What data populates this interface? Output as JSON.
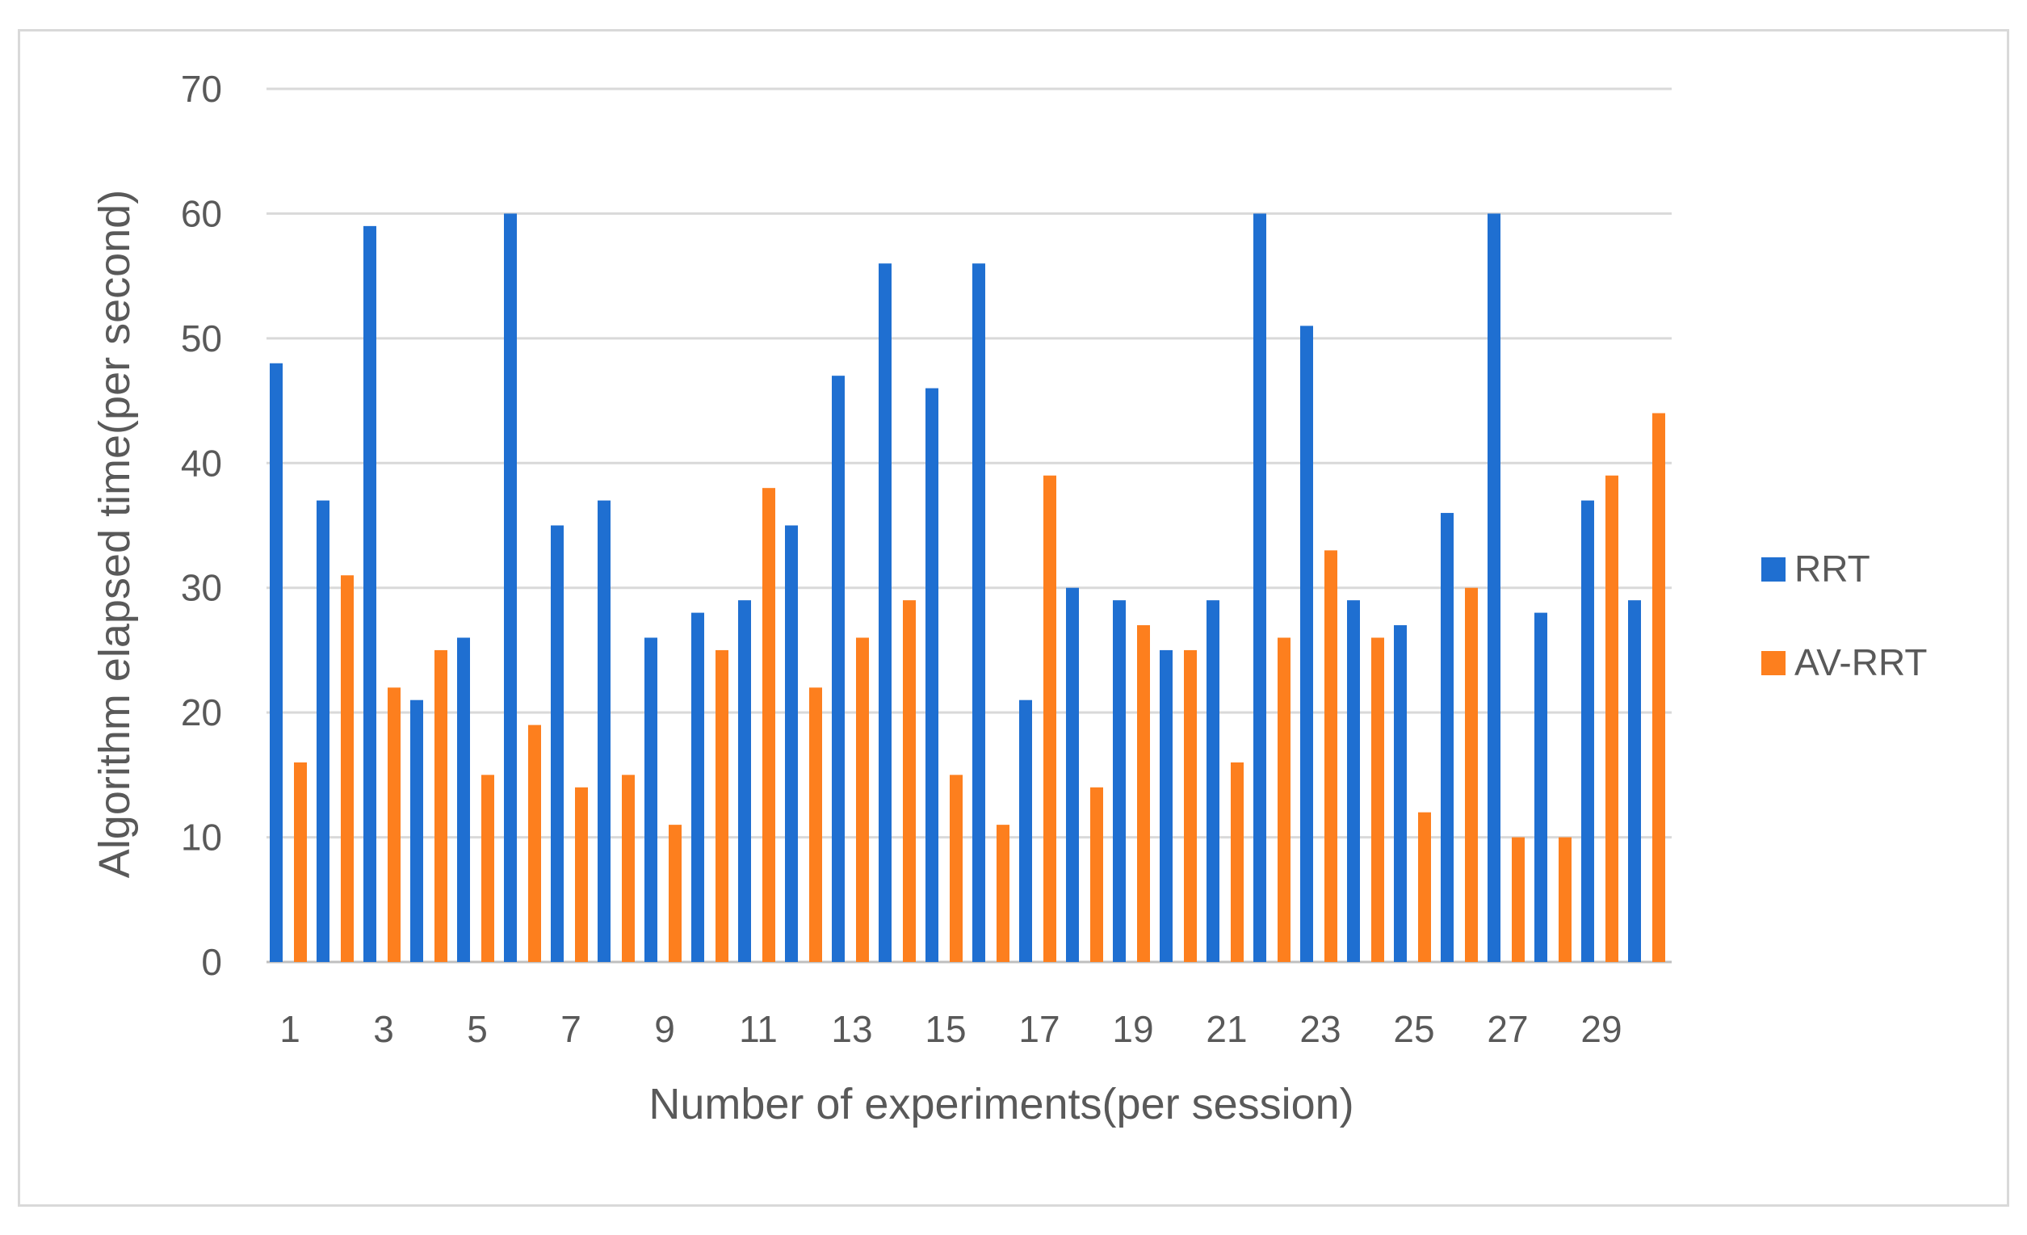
{
  "chart_data": {
    "type": "bar",
    "xlabel": "Number of experiments(per session)",
    "ylabel": "Algorithm elapsed time(per second)",
    "ylim": [
      0,
      70
    ],
    "yticks": [
      0,
      10,
      20,
      30,
      40,
      50,
      60,
      70
    ],
    "grid": true,
    "legend_position": "right",
    "categories": [
      1,
      2,
      3,
      4,
      5,
      6,
      7,
      8,
      9,
      10,
      11,
      12,
      13,
      14,
      15,
      16,
      17,
      18,
      19,
      20,
      21,
      22,
      23,
      24,
      25,
      26,
      27,
      28,
      29,
      30
    ],
    "x_tick_labels": [
      "1",
      "3",
      "5",
      "7",
      "9",
      "11",
      "13",
      "15",
      "17",
      "19",
      "21",
      "23",
      "25",
      "27",
      "29"
    ],
    "series": [
      {
        "name": "RRT",
        "color": "#1f6fd1",
        "values": [
          48,
          37,
          59,
          21,
          26,
          60,
          35,
          37,
          26,
          28,
          29,
          35,
          47,
          56,
          46,
          56,
          21,
          30,
          29,
          25,
          29,
          60,
          51,
          29,
          27,
          36,
          60,
          28,
          37,
          29
        ]
      },
      {
        "name": "AV-RRT",
        "color": "#fd7f1e",
        "values": [
          16,
          31,
          22,
          25,
          15,
          19,
          14,
          15,
          11,
          25,
          38,
          22,
          26,
          29,
          15,
          11,
          39,
          14,
          27,
          25,
          16,
          26,
          33,
          26,
          12,
          30,
          10,
          10,
          39,
          44
        ]
      }
    ]
  }
}
